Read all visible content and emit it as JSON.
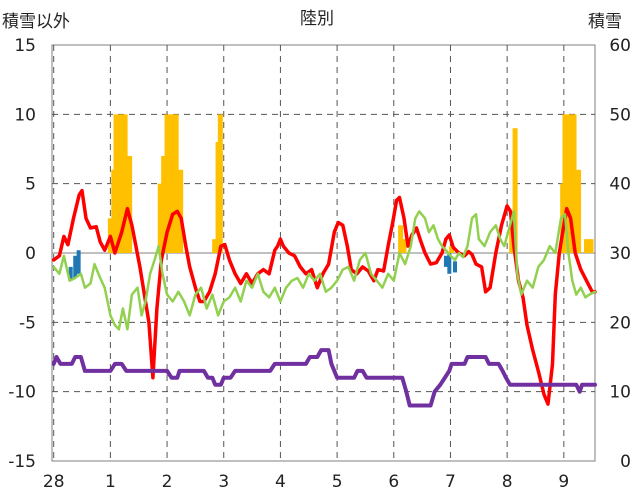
{
  "chart_data": {
    "type": "line",
    "title": "陸別",
    "y_left_label": "積雪以外",
    "y_right_label": "積雪",
    "y_left_ticks": [
      "15",
      "10",
      "5",
      "0",
      "-5",
      "-10",
      "-15"
    ],
    "y_right_ticks": [
      "60",
      "50",
      "40",
      "30",
      "20",
      "10",
      "0"
    ],
    "ylim_left": [
      -15,
      15
    ],
    "ylim_right": [
      0,
      60
    ],
    "x_tick_labels": [
      "28",
      "1",
      "2",
      "3",
      "4",
      "5",
      "6",
      "7",
      "8",
      "9"
    ],
    "xlim": [
      -0.03,
      9.55
    ],
    "series": [
      {
        "color": "#ff0000",
        "axis": "left",
        "points": [
          [
            0,
            -0.5
          ],
          [
            0.1,
            -0.2
          ],
          [
            0.18,
            1.2
          ],
          [
            0.25,
            0.6
          ],
          [
            0.35,
            2.5
          ],
          [
            0.45,
            4.2
          ],
          [
            0.5,
            4.5
          ],
          [
            0.57,
            2.5
          ],
          [
            0.65,
            1.8
          ],
          [
            0.75,
            1.9
          ],
          [
            0.82,
            0.8
          ],
          [
            0.9,
            0.2
          ],
          [
            1.0,
            1.2
          ],
          [
            1.08,
            0.0
          ],
          [
            1.2,
            1.5
          ],
          [
            1.3,
            3.2
          ],
          [
            1.38,
            2.0
          ],
          [
            1.45,
            0.5
          ],
          [
            1.52,
            -1.0
          ],
          [
            1.6,
            -3.0
          ],
          [
            1.68,
            -5.0
          ],
          [
            1.75,
            -9.0
          ],
          [
            1.82,
            -4.0
          ],
          [
            1.9,
            -0.5
          ],
          [
            2.0,
            1.5
          ],
          [
            2.1,
            2.8
          ],
          [
            2.18,
            3.0
          ],
          [
            2.25,
            2.5
          ],
          [
            2.33,
            0.5
          ],
          [
            2.4,
            -1.0
          ],
          [
            2.5,
            -2.5
          ],
          [
            2.58,
            -3.5
          ],
          [
            2.65,
            -3.5
          ],
          [
            2.75,
            -2.8
          ],
          [
            2.85,
            -1.5
          ],
          [
            2.95,
            0.5
          ],
          [
            3.02,
            0.6
          ],
          [
            3.1,
            -0.5
          ],
          [
            3.2,
            -1.5
          ],
          [
            3.3,
            -2.2
          ],
          [
            3.4,
            -1.5
          ],
          [
            3.5,
            -2.2
          ],
          [
            3.6,
            -1.5
          ],
          [
            3.7,
            -1.2
          ],
          [
            3.8,
            -1.5
          ],
          [
            3.9,
            0.2
          ],
          [
            3.95,
            0.5
          ],
          [
            4.0,
            1.0
          ],
          [
            4.05,
            0.5
          ],
          [
            4.15,
            0.0
          ],
          [
            4.25,
            -0.2
          ],
          [
            4.35,
            -1.0
          ],
          [
            4.45,
            -1.5
          ],
          [
            4.55,
            -1.2
          ],
          [
            4.65,
            -2.5
          ],
          [
            4.75,
            -1.5
          ],
          [
            4.85,
            -0.8
          ],
          [
            4.95,
            1.5
          ],
          [
            5.02,
            2.2
          ],
          [
            5.1,
            2.0
          ],
          [
            5.18,
            0.5
          ],
          [
            5.25,
            -1.2
          ],
          [
            5.35,
            -1.5
          ],
          [
            5.45,
            -1.0
          ],
          [
            5.55,
            -1.3
          ],
          [
            5.65,
            -2.0
          ],
          [
            5.72,
            -1.2
          ],
          [
            5.82,
            -1.3
          ],
          [
            5.9,
            0.5
          ],
          [
            5.98,
            2.2
          ],
          [
            6.05,
            3.8
          ],
          [
            6.1,
            4.0
          ],
          [
            6.18,
            2.5
          ],
          [
            6.25,
            0.5
          ],
          [
            6.32,
            1.3
          ],
          [
            6.4,
            1.8
          ],
          [
            6.48,
            0.8
          ],
          [
            6.55,
            0.0
          ],
          [
            6.65,
            -0.8
          ],
          [
            6.75,
            -0.7
          ],
          [
            6.85,
            0.0
          ],
          [
            6.92,
            1.0
          ],
          [
            6.98,
            1.3
          ],
          [
            7.05,
            0.4
          ],
          [
            7.15,
            0.0
          ],
          [
            7.25,
            -0.2
          ],
          [
            7.32,
            0.1
          ],
          [
            7.38,
            -0.1
          ],
          [
            7.45,
            -0.8
          ],
          [
            7.55,
            -1.0
          ],
          [
            7.62,
            -2.8
          ],
          [
            7.7,
            -2.5
          ],
          [
            7.8,
            0.0
          ],
          [
            7.9,
            2.0
          ],
          [
            8.0,
            3.4
          ],
          [
            8.06,
            3.0
          ],
          [
            8.12,
            0.5
          ],
          [
            8.2,
            -2.0
          ],
          [
            8.28,
            -3.2
          ],
          [
            8.35,
            -5.2
          ],
          [
            8.45,
            -7.0
          ],
          [
            8.55,
            -8.5
          ],
          [
            8.65,
            -10.2
          ],
          [
            8.72,
            -10.9
          ],
          [
            8.8,
            -8.0
          ],
          [
            8.85,
            -3.0
          ],
          [
            8.92,
            0.0
          ],
          [
            8.98,
            1.5
          ],
          [
            9.05,
            3.2
          ],
          [
            9.12,
            2.5
          ],
          [
            9.2,
            0.0
          ],
          [
            9.3,
            -1.2
          ],
          [
            9.4,
            -2.0
          ],
          [
            9.5,
            -2.8
          ],
          [
            9.55,
            -2.8
          ]
        ]
      },
      {
        "color": "#92d050",
        "axis": "left",
        "points": [
          [
            0,
            -1.0
          ],
          [
            0.1,
            -1.5
          ],
          [
            0.18,
            -0.2
          ],
          [
            0.28,
            -2.0
          ],
          [
            0.38,
            -1.8
          ],
          [
            0.48,
            -1.5
          ],
          [
            0.55,
            -2.5
          ],
          [
            0.65,
            -2.2
          ],
          [
            0.72,
            -0.8
          ],
          [
            0.82,
            -1.8
          ],
          [
            0.9,
            -2.5
          ],
          [
            1.0,
            -4.5
          ],
          [
            1.08,
            -5.2
          ],
          [
            1.15,
            -5.5
          ],
          [
            1.22,
            -4.0
          ],
          [
            1.3,
            -5.5
          ],
          [
            1.38,
            -3.0
          ],
          [
            1.48,
            -2.5
          ],
          [
            1.55,
            -4.5
          ],
          [
            1.62,
            -3.5
          ],
          [
            1.7,
            -1.5
          ],
          [
            1.78,
            -0.5
          ],
          [
            1.85,
            0.5
          ],
          [
            1.92,
            -1.5
          ],
          [
            2.0,
            -3.0
          ],
          [
            2.1,
            -3.5
          ],
          [
            2.2,
            -2.8
          ],
          [
            2.3,
            -3.5
          ],
          [
            2.4,
            -4.5
          ],
          [
            2.5,
            -3.0
          ],
          [
            2.6,
            -2.5
          ],
          [
            2.7,
            -4.0
          ],
          [
            2.8,
            -3.0
          ],
          [
            2.9,
            -4.5
          ],
          [
            3.0,
            -3.5
          ],
          [
            3.1,
            -3.2
          ],
          [
            3.2,
            -2.5
          ],
          [
            3.3,
            -3.5
          ],
          [
            3.4,
            -2.0
          ],
          [
            3.5,
            -2.5
          ],
          [
            3.6,
            -1.5
          ],
          [
            3.7,
            -2.8
          ],
          [
            3.8,
            -3.2
          ],
          [
            3.9,
            -2.5
          ],
          [
            4.0,
            -3.5
          ],
          [
            4.1,
            -2.5
          ],
          [
            4.2,
            -2.0
          ],
          [
            4.3,
            -1.8
          ],
          [
            4.4,
            -2.5
          ],
          [
            4.5,
            -1.5
          ],
          [
            4.6,
            -2.0
          ],
          [
            4.7,
            -1.5
          ],
          [
            4.8,
            -2.8
          ],
          [
            4.9,
            -2.5
          ],
          [
            5.0,
            -2.0
          ],
          [
            5.1,
            -1.2
          ],
          [
            5.2,
            -1.0
          ],
          [
            5.3,
            -2.0
          ],
          [
            5.4,
            -0.5
          ],
          [
            5.5,
            0.0
          ],
          [
            5.6,
            -1.5
          ],
          [
            5.7,
            -2.0
          ],
          [
            5.8,
            -2.5
          ],
          [
            5.9,
            -1.5
          ],
          [
            6.0,
            -2.0
          ],
          [
            6.1,
            0.0
          ],
          [
            6.2,
            -0.8
          ],
          [
            6.3,
            0.5
          ],
          [
            6.38,
            2.5
          ],
          [
            6.45,
            3.0
          ],
          [
            6.55,
            2.5
          ],
          [
            6.62,
            1.5
          ],
          [
            6.7,
            2.0
          ],
          [
            6.78,
            1.0
          ],
          [
            6.85,
            0.5
          ],
          [
            6.92,
            0.2
          ],
          [
            7.0,
            -0.2
          ],
          [
            7.08,
            -0.5
          ],
          [
            7.15,
            0.0
          ],
          [
            7.22,
            -0.3
          ],
          [
            7.3,
            0.5
          ],
          [
            7.38,
            2.5
          ],
          [
            7.45,
            2.8
          ],
          [
            7.5,
            1.0
          ],
          [
            7.6,
            0.5
          ],
          [
            7.7,
            1.5
          ],
          [
            7.8,
            2.0
          ],
          [
            7.88,
            1.0
          ],
          [
            7.95,
            0.5
          ],
          [
            8.05,
            2.0
          ],
          [
            8.12,
            3.0
          ],
          [
            8.18,
            -1.5
          ],
          [
            8.25,
            -3.0
          ],
          [
            8.35,
            -2.0
          ],
          [
            8.45,
            -2.5
          ],
          [
            8.55,
            -1.0
          ],
          [
            8.65,
            -0.5
          ],
          [
            8.75,
            0.5
          ],
          [
            8.85,
            0.0
          ],
          [
            8.95,
            2.5
          ],
          [
            9.02,
            2.8
          ],
          [
            9.08,
            0.0
          ],
          [
            9.15,
            -2.0
          ],
          [
            9.22,
            -3.0
          ],
          [
            9.3,
            -2.5
          ],
          [
            9.38,
            -3.2
          ],
          [
            9.45,
            -3.0
          ],
          [
            9.55,
            -2.8
          ]
        ]
      },
      {
        "color": "#7030a0",
        "axis": "left",
        "points": [
          [
            0,
            -8.0
          ],
          [
            0.05,
            -7.5
          ],
          [
            0.12,
            -8.0
          ],
          [
            0.32,
            -8.0
          ],
          [
            0.38,
            -7.5
          ],
          [
            0.48,
            -7.5
          ],
          [
            0.55,
            -8.5
          ],
          [
            1.0,
            -8.5
          ],
          [
            1.08,
            -8.0
          ],
          [
            1.2,
            -8.0
          ],
          [
            1.28,
            -8.5
          ],
          [
            2.0,
            -8.5
          ],
          [
            2.08,
            -9.0
          ],
          [
            2.18,
            -9.0
          ],
          [
            2.22,
            -8.5
          ],
          [
            2.65,
            -8.5
          ],
          [
            2.72,
            -9.0
          ],
          [
            2.8,
            -9.0
          ],
          [
            2.85,
            -9.5
          ],
          [
            2.95,
            -9.5
          ],
          [
            3.0,
            -9.0
          ],
          [
            3.12,
            -9.0
          ],
          [
            3.2,
            -8.5
          ],
          [
            3.82,
            -8.5
          ],
          [
            3.9,
            -8.0
          ],
          [
            4.45,
            -8.0
          ],
          [
            4.52,
            -7.5
          ],
          [
            4.65,
            -7.5
          ],
          [
            4.72,
            -7.0
          ],
          [
            4.85,
            -7.0
          ],
          [
            4.9,
            -8.0
          ],
          [
            4.95,
            -8.5
          ],
          [
            5.0,
            -9.0
          ],
          [
            5.3,
            -9.0
          ],
          [
            5.36,
            -8.5
          ],
          [
            5.45,
            -8.5
          ],
          [
            5.52,
            -9.0
          ],
          [
            6.15,
            -9.0
          ],
          [
            6.22,
            -10.0
          ],
          [
            6.28,
            -11.0
          ],
          [
            6.65,
            -11.0
          ],
          [
            6.72,
            -10.0
          ],
          [
            6.82,
            -9.5
          ],
          [
            6.9,
            -9.0
          ],
          [
            6.98,
            -8.5
          ],
          [
            7.02,
            -8.0
          ],
          [
            7.25,
            -8.0
          ],
          [
            7.3,
            -7.5
          ],
          [
            7.62,
            -7.5
          ],
          [
            7.68,
            -8.0
          ],
          [
            7.85,
            -8.0
          ],
          [
            7.92,
            -8.5
          ],
          [
            7.98,
            -9.0
          ],
          [
            8.05,
            -9.5
          ],
          [
            9.22,
            -9.5
          ],
          [
            9.28,
            -10.0
          ],
          [
            9.32,
            -9.5
          ],
          [
            9.55,
            -9.5
          ]
        ]
      }
    ],
    "bars": {
      "color": "#ffc000",
      "axis": "right",
      "baseline": 30,
      "items": [
        [
          1.0,
          35
        ],
        [
          1.06,
          42
        ],
        [
          1.1,
          50
        ],
        [
          1.18,
          50
        ],
        [
          1.26,
          50
        ],
        [
          1.34,
          44
        ],
        [
          1.88,
          40
        ],
        [
          1.94,
          44
        ],
        [
          2.0,
          50
        ],
        [
          2.08,
          50
        ],
        [
          2.16,
          50
        ],
        [
          2.24,
          42
        ],
        [
          2.84,
          32
        ],
        [
          2.9,
          46
        ],
        [
          2.94,
          50
        ],
        [
          6.12,
          34
        ],
        [
          6.18,
          32
        ],
        [
          7.02,
          31
        ],
        [
          8.08,
          34
        ],
        [
          8.14,
          48
        ],
        [
          8.98,
          40
        ],
        [
          9.02,
          50
        ],
        [
          9.1,
          50
        ],
        [
          9.18,
          50
        ],
        [
          9.26,
          42
        ],
        [
          9.4,
          32
        ],
        [
          9.48,
          32
        ]
      ]
    },
    "ticks_blue": {
      "color": "#1f77b4",
      "axis": "left",
      "items": [
        [
          0.3,
          -1.0,
          -2.0
        ],
        [
          0.38,
          -0.2,
          -1.8
        ],
        [
          0.44,
          0.2,
          -1.5
        ],
        [
          6.92,
          -0.2,
          -1.0
        ],
        [
          6.98,
          0.0,
          -1.5
        ],
        [
          7.08,
          -0.6,
          -1.4
        ]
      ]
    }
  }
}
